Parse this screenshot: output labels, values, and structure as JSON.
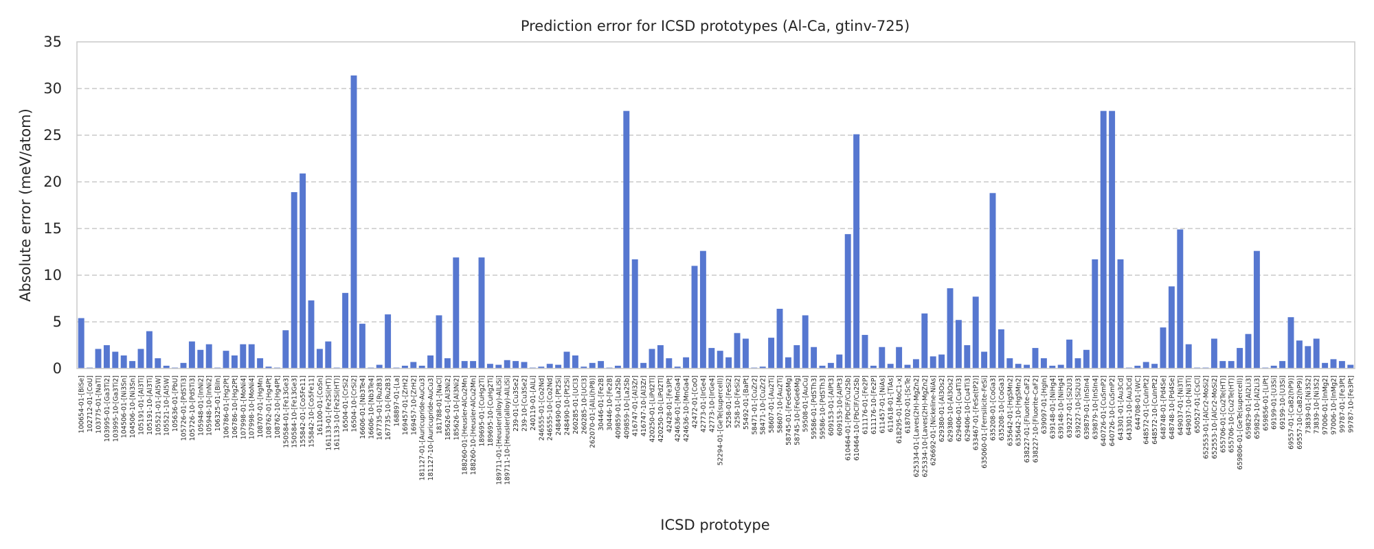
{
  "chart_data": {
    "type": "bar",
    "title": "Prediction error for ICSD prototypes (Al-Ca, gtinv-725)",
    "xlabel": "ICSD prototype",
    "ylabel": "Absolute error (meV/atom)",
    "ylim": [
      0,
      35
    ],
    "yticks": [
      0,
      5,
      10,
      15,
      20,
      25,
      30,
      35
    ],
    "grid": "y-dashed",
    "bar_color": "#5677d0",
    "categories": [
      "100654-01-[BiSe]",
      "102712-01-[CoU]",
      "103775-01-[NaTl]",
      "103995-01-[Ga3Ti2]",
      "103995-10-[Ga3Ti2]",
      "104506-01-[Ni3Sn]",
      "104506-10-[Ni3Sn]",
      "105191-01-[Al3Ti]",
      "105191-10-[Al3Ti]",
      "105521-01-[Al5W]",
      "105521-10-[Al5W]",
      "105636-01-[PbU]",
      "105726-01-[PdSTi3]",
      "105726-10-[PdSTi3]",
      "105948-01-[InNi2]",
      "105948-10-[InNi2]",
      "106325-01-[BiIn]",
      "106786-01-[Hg2Pt]",
      "106786-10-[Hg2Pt]",
      "107998-01-[MoNi4]",
      "107998-10-[MoNi4]",
      "108707-01-[HgMn]",
      "108762-01-[Hg4Pt]",
      "108762-10-[Hg4Pt]",
      "150584-01-[Fe13Ge3]",
      "150584-10-[Fe13Ge3]",
      "155842-01-[Co5Fe11]",
      "155842-10-[Co5Fe11]",
      "161100-01-[CoSn]",
      "161133-01-[Fe2Si(HT)]",
      "161133-10-[Fe2Si(HT)]",
      "16504-01-[CrSi2]",
      "16504-10-[CrSi2]",
      "16606-01-[Nb3Te4]",
      "16606-10-[Nb3Te4]",
      "167735-01-[Ru2B3]",
      "167735-10-[Ru2B3]",
      "168897-01-[La]",
      "169457-01-[ZrH2]",
      "169457-10-[ZrH2]",
      "181127-01-[Auricupride-AuCu3]",
      "181127-10-[Auricupride-AuCu3]",
      "181788-01-[NaCl]",
      "185626-01-[Al3Ni2]",
      "185626-10-[Al3Ni2]",
      "188260-01-[Heusler-AlCu2Mn]",
      "188260-10-[Heusler-AlCu2Mn]",
      "189695-01-[CuHg2Ti]",
      "189695-10-[CuHg2Ti]",
      "189711-01-[Heusler(alloy)-AlLiSi]",
      "189711-10-[Heusler(alloy)-AlLiSi]",
      "239-01-[Cu3Se2]",
      "239-10-[Cu3Se2]",
      "240119-01-[AlLi]",
      "246555-01-[Co2Nd]",
      "246555-10-[Co2Nd]",
      "248490-01-[Pt2Si]",
      "248490-10-[Pt2Si]",
      "260285-01-[UCl3]",
      "260285-10-[UCl3]",
      "262070-01-[AlLi(hP8)]",
      "30446-01-[Fe2B]",
      "30446-10-[Fe2B]",
      "409859-01-[La2Sb]",
      "409859-10-[La2Sb]",
      "416747-01-[Al3Zr]",
      "416747-10-[Al3Zr]",
      "420250-01-[LiPd2Tl]",
      "420250-10-[LiPd2Tl]",
      "42428-01-[Fe3Pt]",
      "424636-01-[MnGa4]",
      "424636-10-[MnGa4]",
      "42472-01-[CoO]",
      "42773-01-[IrGe4]",
      "42773-10-[IrGe4]",
      "52294-01-[GeTe(supercell)]",
      "5258-01-[FeSi2]",
      "5258-10-[FeSi2]",
      "55492-01-[BaPt]",
      "58471-01-[CuZr2]",
      "58471-10-[CuZr2]",
      "58607-01-[Au2Ti]",
      "58607-10-[Au2Ti]",
      "58745-01-[FeGe6Mg]",
      "58745-10-[FeGe6Mg]",
      "59508-01-[AuCu]",
      "59586-01-[PdSTh3]",
      "59586-10-[PdSTh3]",
      "609153-01-[AlPt3]",
      "609153-10-[AlPt3]",
      "610464-01-[PbClF/Cu2Sb]",
      "610464-10-[PbClF/Cu2Sb]",
      "611176-01-[Fe2P]",
      "611176-10-[Fe2P]",
      "611457-01-[NiAs]",
      "611618-01-[TiAs]",
      "618295-01-[MoC1-x]",
      "618702-01-[ScTe]",
      "625334-01-[Laves(2H)-MgZn2]",
      "625334-10-[Laves(2H)-MgZn2]",
      "626692-01-[Nickeline-NiAs]",
      "629380-01-[Al3Os2]",
      "629380-10-[Al3Os2]",
      "629406-01-[Cu4Ti3]",
      "629406-10-[Cu4Ti3]",
      "633467-01-[FeSe(tP2)]",
      "635060-01-[Ferrsilicite-FeSi]",
      "635208-01-[CoGa3]",
      "635208-10-[CoGa3]",
      "635642-01-[HgSMn2]",
      "635642-10-[HgSMn2]",
      "638227-01-[Fluorite-CaF2]",
      "638227-10-[Fluorite-CaF2]",
      "639097-01-[HgIn]",
      "639148-01-[NiHg4]",
      "639148-10-[NiHg4]",
      "639227-01-[Si2U3]",
      "639227-10-[Si2U3]",
      "639879-01-[InSIn4]",
      "639879-10-[InSIn4]",
      "640726-01-[CuSmP2]",
      "640726-10-[CuSmP2]",
      "643301-01-[Au3Cd]",
      "643301-10-[Au3Cd]",
      "644708-01-[WC]",
      "648572-01-[CuInPt2]",
      "648572-10-[CuInPt2]",
      "648748-01-[Pd4Se]",
      "648748-10-[Pd4Se]",
      "649037-01-[Ni3Ti]",
      "649037-10-[Ni3Ti]",
      "650527-01-[CsCl]",
      "652553-01-[AlCr2-MoSi2]",
      "652553-10-[AlCr2-MoSi2]",
      "655706-01-[Cu2Te(HT)]",
      "655706-10-[Cu2Te(HT)]",
      "659806-01-[GeTe(supercell)]",
      "659829-01-[Al2Li3]",
      "659829-10-[Al2Li3]",
      "659856-01-[LiPt]",
      "69199-01-[U3Si]",
      "69199-10-[U3Si]",
      "69557-01-[CaB2(hP9)]",
      "69557-10-[CaB2(hP9)]",
      "73839-01-[Ni3S2]",
      "73839-10-[Ni3S2]",
      "97006-01-[InMg2]",
      "97006-10-[InMg2]",
      "99787-01-[Fe3Pt]",
      "99787-10-[Fe3Pt]"
    ],
    "values": [
      5.4,
      0.1,
      2.1,
      2.5,
      1.8,
      1.4,
      0.8,
      2.1,
      4.0,
      1.1,
      0.3,
      0.1,
      0.6,
      2.9,
      2.0,
      2.6,
      0.1,
      1.9,
      1.4,
      2.6,
      2.6,
      1.1,
      0.2,
      0.1,
      4.1,
      18.9,
      20.9,
      7.3,
      2.1,
      2.9,
      0.1,
      8.1,
      31.4,
      4.8,
      0.1,
      0.4,
      5.8,
      0.1,
      0.3,
      0.7,
      0.3,
      1.4,
      5.7,
      1.1,
      11.9,
      0.8,
      0.8,
      11.9,
      0.5,
      0.4,
      0.9,
      0.8,
      0.7,
      0.1,
      0.2,
      0.5,
      0.4,
      1.8,
      1.4,
      0.2,
      0.6,
      0.8,
      0.1,
      0.3,
      27.6,
      11.7,
      0.6,
      2.1,
      2.5,
      1.1,
      0.2,
      1.2,
      11.0,
      12.6,
      2.2,
      1.9,
      1.2,
      3.8,
      3.2,
      0.1,
      0.2,
      3.3,
      6.4,
      1.2,
      2.5,
      5.7,
      2.3,
      0.3,
      0.6,
      1.5,
      14.4,
      25.1,
      3.6,
      0.3,
      2.3,
      0.5,
      2.3,
      0.4,
      1.0,
      5.9,
      1.3,
      1.5,
      8.6,
      5.2,
      2.5,
      7.7,
      1.8,
      18.8,
      4.2,
      1.1,
      0.5,
      0.4,
      2.2,
      1.1,
      0.3,
      0.4,
      3.1,
      1.1,
      2.0,
      11.7,
      27.6,
      27.6,
      11.7,
      0.1,
      0.3,
      0.7,
      0.5,
      4.4,
      8.8,
      14.9,
      2.6,
      0.1,
      0.1,
      3.2,
      0.8,
      0.8,
      2.2,
      3.7,
      12.6,
      0.1,
      0.3,
      0.8,
      5.5,
      3.0,
      2.4,
      3.2,
      0.6,
      1.0,
      0.8,
      0.4
    ]
  }
}
